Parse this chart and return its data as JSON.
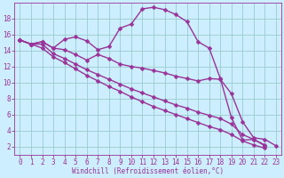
{
  "xlabel": "Windchill (Refroidissement éolien,°C)",
  "bg_color": "#cceeff",
  "line_color": "#993399",
  "grid_color": "#99cccc",
  "xlim": [
    -0.5,
    23.5
  ],
  "ylim": [
    1,
    20
  ],
  "xticks": [
    0,
    1,
    2,
    3,
    4,
    5,
    6,
    7,
    8,
    9,
    10,
    11,
    12,
    13,
    14,
    15,
    16,
    17,
    18,
    19,
    20,
    21,
    22,
    23
  ],
  "yticks": [
    2,
    4,
    6,
    8,
    10,
    12,
    14,
    16,
    18
  ],
  "line1_x": [
    0,
    1,
    2,
    3,
    4,
    5,
    6,
    7,
    8,
    9,
    10,
    11,
    12,
    13,
    14,
    15,
    16,
    17,
    18,
    19,
    20,
    21,
    22
  ],
  "line1_y": [
    15.3,
    14.8,
    15.1,
    14.3,
    15.4,
    15.7,
    15.2,
    14.1,
    14.5,
    16.8,
    17.3,
    19.2,
    19.4,
    19.1,
    18.5,
    17.6,
    15.1,
    14.3,
    10.5,
    5.6,
    2.8,
    2.9,
    2.1
  ],
  "line2_x": [
    0,
    1,
    2,
    3,
    4,
    5,
    6,
    7,
    8,
    9,
    10,
    11,
    12,
    13,
    14,
    15,
    16,
    17,
    18,
    19,
    20,
    21,
    22,
    23
  ],
  "line2_y": [
    15.3,
    14.8,
    15.1,
    14.3,
    14.1,
    13.5,
    12.8,
    13.5,
    13.0,
    12.3,
    12.0,
    11.8,
    11.5,
    11.2,
    10.8,
    10.5,
    10.2,
    10.5,
    10.4,
    8.6,
    5.1,
    3.1,
    2.9,
    2.1
  ],
  "line3_x": [
    0,
    1,
    2,
    3,
    4,
    5,
    6,
    7,
    8,
    9,
    10,
    11,
    12,
    13,
    14,
    15,
    16,
    17,
    18,
    19,
    20,
    21,
    22,
    23
  ],
  "line3_y": [
    15.3,
    14.8,
    14.8,
    13.6,
    13.0,
    12.3,
    11.6,
    11.0,
    10.4,
    9.8,
    9.2,
    8.7,
    8.2,
    7.7,
    7.2,
    6.8,
    6.3,
    5.9,
    5.5,
    4.8,
    3.5,
    2.9,
    2.2,
    null
  ],
  "line4_x": [
    0,
    1,
    2,
    3,
    4,
    5,
    6,
    7,
    8,
    9,
    10,
    11,
    12,
    13,
    14,
    15,
    16,
    17,
    18,
    19,
    20,
    21,
    22,
    23
  ],
  "line4_y": [
    15.3,
    14.8,
    14.3,
    13.2,
    12.5,
    11.7,
    10.9,
    10.2,
    9.5,
    8.9,
    8.2,
    7.6,
    7.0,
    6.5,
    6.0,
    5.5,
    5.0,
    4.5,
    4.1,
    3.5,
    2.7,
    2.2,
    1.8,
    null
  ],
  "tick_fontsize": 5.5,
  "xlabel_fontsize": 5.5,
  "marker": "D",
  "markersize": 2.5,
  "linewidth": 1.0
}
